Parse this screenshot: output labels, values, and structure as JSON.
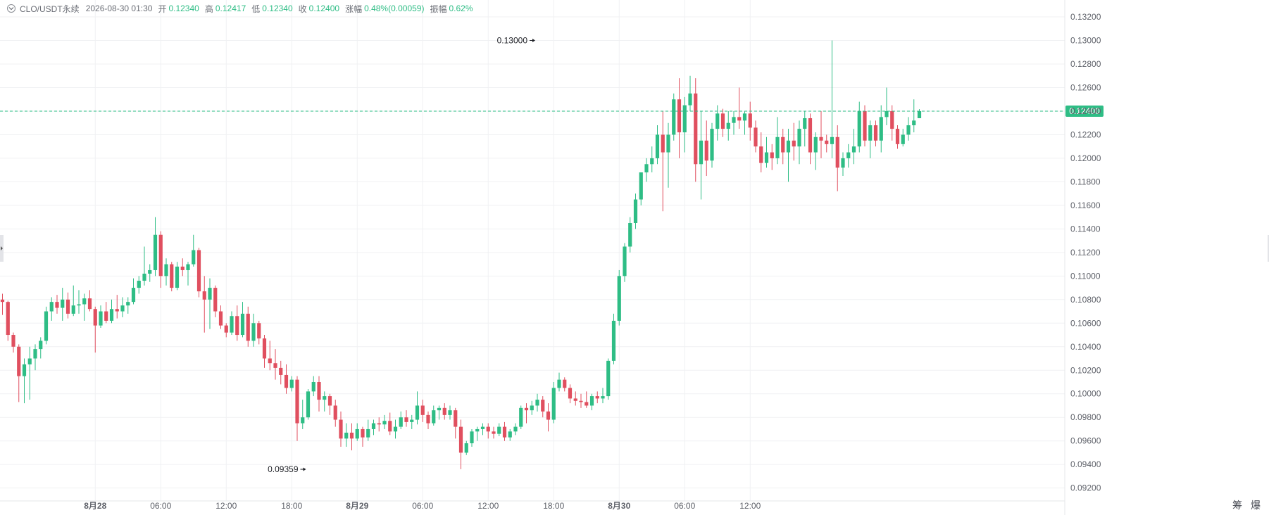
{
  "header": {
    "symbol": "CLO/USDT永续",
    "timestamp": "2026-08-30 01:30",
    "open_label": "开",
    "open_value": "0.12340",
    "high_label": "高",
    "high_value": "0.12417",
    "low_label": "低",
    "low_value": "0.12340",
    "close_label": "收",
    "close_value": "0.12400",
    "change_label": "涨幅",
    "change_value": "0.48%(0.00059)",
    "amplitude_label": "振幅",
    "amplitude_value": "0.62%"
  },
  "tools": {
    "chip_label": "筹",
    "liquidation_label": "爆"
  },
  "colors": {
    "up": "#2ebd85",
    "down": "#e04f5f",
    "grid": "#f0f1f3",
    "axis_text": "#5e6169",
    "text": "#1e2026"
  },
  "chart_data": {
    "type": "candlestick",
    "interval": "30m",
    "ylim": [
      0.0918,
      0.1326
    ],
    "y_ticks": [
      "0.09200",
      "0.09400",
      "0.09600",
      "0.09800",
      "0.10000",
      "0.10200",
      "0.10400",
      "0.10600",
      "0.10800",
      "0.11000",
      "0.11200",
      "0.11400",
      "0.11600",
      "0.11800",
      "0.12000",
      "0.12200",
      "0.12400",
      "0.12600",
      "0.12800",
      "0.13000",
      "0.13200"
    ],
    "x_ticks": [
      {
        "label": "8月28",
        "index": 17,
        "bold": true
      },
      {
        "label": "06:00",
        "index": 29,
        "bold": false
      },
      {
        "label": "12:00",
        "index": 41,
        "bold": false
      },
      {
        "label": "18:00",
        "index": 53,
        "bold": false
      },
      {
        "label": "8月29",
        "index": 65,
        "bold": true
      },
      {
        "label": "06:00",
        "index": 77,
        "bold": false
      },
      {
        "label": "12:00",
        "index": 89,
        "bold": false
      },
      {
        "label": "18:00",
        "index": 101,
        "bold": false
      },
      {
        "label": "8月30",
        "index": 113,
        "bold": true
      },
      {
        "label": "06:00",
        "index": 125,
        "bold": false
      },
      {
        "label": "12:00",
        "index": 137,
        "bold": false
      }
    ],
    "last_price": "0.12400",
    "last_price_value": 0.124,
    "annotations": [
      {
        "label": "0.13000",
        "index": 98,
        "value": 0.13,
        "type": "high"
      },
      {
        "label": "0.09359",
        "index": 56,
        "value": 0.09359,
        "type": "low"
      }
    ],
    "candles": [
      [
        0.108,
        0.1085,
        0.1067,
        0.1078
      ],
      [
        0.1078,
        0.1079,
        0.1045,
        0.105
      ],
      [
        0.105,
        0.1052,
        0.1035,
        0.104
      ],
      [
        0.104,
        0.1042,
        0.0993,
        0.1015
      ],
      [
        0.1015,
        0.103,
        0.0992,
        0.1025
      ],
      [
        0.1025,
        0.104,
        0.0995,
        0.103
      ],
      [
        0.103,
        0.1042,
        0.102,
        0.1038
      ],
      [
        0.1038,
        0.1048,
        0.103,
        0.1045
      ],
      [
        0.1045,
        0.1074,
        0.1042,
        0.107
      ],
      [
        0.107,
        0.1082,
        0.1062,
        0.1078
      ],
      [
        0.1078,
        0.1084,
        0.1068,
        0.1073
      ],
      [
        0.1073,
        0.109,
        0.1062,
        0.108
      ],
      [
        0.108,
        0.1086,
        0.1064,
        0.1068
      ],
      [
        0.1068,
        0.1092,
        0.1066,
        0.1075
      ],
      [
        0.1075,
        0.1088,
        0.1068,
        0.1076
      ],
      [
        0.1076,
        0.1085,
        0.1062,
        0.1081
      ],
      [
        0.1081,
        0.1088,
        0.107,
        0.1072
      ],
      [
        0.1072,
        0.1074,
        0.1035,
        0.1058
      ],
      [
        0.1058,
        0.1075,
        0.1056,
        0.107
      ],
      [
        0.107,
        0.1078,
        0.106,
        0.1062
      ],
      [
        0.1062,
        0.108,
        0.106,
        0.1072
      ],
      [
        0.1072,
        0.1084,
        0.1064,
        0.107
      ],
      [
        0.107,
        0.1082,
        0.1065,
        0.1075
      ],
      [
        0.1075,
        0.1082,
        0.1068,
        0.1078
      ],
      [
        0.1078,
        0.1098,
        0.1076,
        0.109
      ],
      [
        0.109,
        0.11,
        0.1085,
        0.1096
      ],
      [
        0.1096,
        0.1125,
        0.1092,
        0.1102
      ],
      [
        0.1102,
        0.111,
        0.1095,
        0.1105
      ],
      [
        0.1105,
        0.115,
        0.11,
        0.1135
      ],
      [
        0.1135,
        0.1138,
        0.109,
        0.11
      ],
      [
        0.11,
        0.1115,
        0.1092,
        0.111
      ],
      [
        0.111,
        0.1112,
        0.1087,
        0.109
      ],
      [
        0.109,
        0.1112,
        0.1088,
        0.1108
      ],
      [
        0.1108,
        0.1115,
        0.11,
        0.1105
      ],
      [
        0.1105,
        0.1112,
        0.1092,
        0.111
      ],
      [
        0.111,
        0.1135,
        0.1108,
        0.1122
      ],
      [
        0.1122,
        0.1124,
        0.1082,
        0.1087
      ],
      [
        0.1087,
        0.11,
        0.1052,
        0.108
      ],
      [
        0.108,
        0.1098,
        0.1055,
        0.109
      ],
      [
        0.109,
        0.1092,
        0.1065,
        0.107
      ],
      [
        0.107,
        0.1075,
        0.1055,
        0.1058
      ],
      [
        0.1058,
        0.106,
        0.1048,
        0.1052
      ],
      [
        0.1052,
        0.107,
        0.105,
        0.1066
      ],
      [
        0.1066,
        0.1075,
        0.1045,
        0.105
      ],
      [
        0.105,
        0.1078,
        0.1048,
        0.1068
      ],
      [
        0.1068,
        0.1074,
        0.104,
        0.1045
      ],
      [
        0.1045,
        0.1068,
        0.104,
        0.106
      ],
      [
        0.106,
        0.1062,
        0.1042,
        0.1047
      ],
      [
        0.1047,
        0.105,
        0.1022,
        0.103
      ],
      [
        0.103,
        0.1045,
        0.102,
        0.1026
      ],
      [
        0.1026,
        0.1038,
        0.1012,
        0.1022
      ],
      [
        0.1022,
        0.1028,
        0.1008,
        0.1016
      ],
      [
        0.1016,
        0.1025,
        0.1,
        0.1005
      ],
      [
        0.1005,
        0.1015,
        0.1002,
        0.1012
      ],
      [
        0.1012,
        0.1015,
        0.096,
        0.0975
      ],
      [
        0.0975,
        0.0995,
        0.097,
        0.098
      ],
      [
        0.098,
        0.1004,
        0.0978,
        0.1002
      ],
      [
        0.1002,
        0.1015,
        0.0998,
        0.101
      ],
      [
        0.101,
        0.1015,
        0.0985,
        0.0995
      ],
      [
        0.0995,
        0.1002,
        0.0985,
        0.0998
      ],
      [
        0.0998,
        0.1,
        0.0982,
        0.099
      ],
      [
        0.099,
        0.0995,
        0.0972,
        0.0978
      ],
      [
        0.0978,
        0.0985,
        0.0955,
        0.0962
      ],
      [
        0.0962,
        0.0975,
        0.0955,
        0.0967
      ],
      [
        0.0967,
        0.0975,
        0.0952,
        0.0962
      ],
      [
        0.0962,
        0.0975,
        0.096,
        0.097
      ],
      [
        0.097,
        0.0972,
        0.0955,
        0.0963
      ],
      [
        0.0963,
        0.0978,
        0.096,
        0.097
      ]
    ],
    "candles_2": [
      [
        0.097,
        0.0978,
        0.0965,
        0.0975
      ],
      [
        0.0975,
        0.098,
        0.0968,
        0.0974
      ],
      [
        0.0974,
        0.0982,
        0.097,
        0.0977
      ],
      [
        0.0977,
        0.0984,
        0.0965,
        0.0968
      ],
      [
        0.0968,
        0.0978,
        0.0962,
        0.0972
      ],
      [
        0.0972,
        0.0985,
        0.097,
        0.098
      ],
      [
        0.098,
        0.0986,
        0.0972,
        0.0976
      ],
      [
        0.0976,
        0.0982,
        0.097,
        0.0978
      ],
      [
        0.0978,
        0.1002,
        0.0974,
        0.099
      ],
      [
        0.099,
        0.0995,
        0.0976,
        0.0982
      ],
      [
        0.0982,
        0.0985,
        0.097,
        0.0975
      ],
      [
        0.0975,
        0.099,
        0.0973,
        0.0986
      ],
      [
        0.0986,
        0.099,
        0.0978,
        0.0988
      ],
      [
        0.0988,
        0.0992,
        0.0978,
        0.0982
      ],
      [
        0.0982,
        0.099,
        0.0978,
        0.0986
      ],
      [
        0.0986,
        0.0988,
        0.0962,
        0.0972
      ],
      [
        0.0972,
        0.0978,
        0.0936,
        0.095
      ],
      [
        0.095,
        0.096,
        0.0948,
        0.0958
      ],
      [
        0.0958,
        0.097,
        0.0955,
        0.0968
      ],
      [
        0.0968,
        0.0972,
        0.096,
        0.097
      ],
      [
        0.097,
        0.0975,
        0.0965,
        0.0972
      ],
      [
        0.0972,
        0.0975,
        0.0962,
        0.0968
      ],
      [
        0.0968,
        0.0972,
        0.0962,
        0.0966
      ],
      [
        0.0966,
        0.0975,
        0.0964,
        0.0972
      ],
      [
        0.0972,
        0.0976,
        0.096,
        0.0963
      ],
      [
        0.0963,
        0.097,
        0.096,
        0.0968
      ],
      [
        0.0968,
        0.0975,
        0.0965,
        0.0972
      ],
      [
        0.0972,
        0.099,
        0.097,
        0.0988
      ],
      [
        0.0988,
        0.0992,
        0.0975,
        0.0986
      ],
      [
        0.0986,
        0.0994,
        0.0982,
        0.099
      ],
      [
        0.099,
        0.1,
        0.0985,
        0.0995
      ],
      [
        0.0995,
        0.0998,
        0.098,
        0.0985
      ],
      [
        0.0985,
        0.0992,
        0.0968,
        0.0978
      ],
      [
        0.0978,
        0.101,
        0.0975,
        0.1005
      ],
      [
        0.1005,
        0.1018,
        0.1002,
        0.1012
      ],
      [
        0.1012,
        0.1014,
        0.1002,
        0.1005
      ],
      [
        0.1005,
        0.1008,
        0.0992,
        0.0996
      ],
      [
        0.0996,
        0.1002,
        0.099,
        0.0994
      ],
      [
        0.0994,
        0.1,
        0.0988,
        0.0993
      ],
      [
        0.0993,
        0.1002,
        0.0988,
        0.099
      ],
      [
        0.099,
        0.1,
        0.0986,
        0.0998
      ],
      [
        0.0998,
        0.1002,
        0.0992,
        0.0996
      ],
      [
        0.0996,
        0.1005,
        0.0992,
        0.0998
      ],
      [
        0.0998,
        0.103,
        0.0995,
        0.1028
      ],
      [
        0.1028,
        0.1068,
        0.1025,
        0.1062
      ],
      [
        0.1062,
        0.1105,
        0.1058,
        0.11
      ],
      [
        0.11,
        0.1128,
        0.1095,
        0.1125
      ],
      [
        0.1125,
        0.115,
        0.112,
        0.1145
      ]
    ],
    "candles_3": [
      [
        0.1145,
        0.117,
        0.114,
        0.1165
      ],
      [
        0.1165,
        0.1185,
        0.116,
        0.1188
      ],
      [
        0.1188,
        0.12,
        0.118,
        0.1195
      ],
      [
        0.1195,
        0.121,
        0.1188,
        0.12
      ],
      [
        0.12,
        0.1228,
        0.1195,
        0.122
      ],
      [
        0.122,
        0.124,
        0.1155,
        0.1205
      ],
      [
        0.1205,
        0.123,
        0.1175,
        0.122
      ],
      [
        0.122,
        0.1255,
        0.1215,
        0.125
      ],
      [
        0.125,
        0.1268,
        0.12,
        0.1222
      ],
      [
        0.1222,
        0.1252,
        0.1205,
        0.1245
      ],
      [
        0.1245,
        0.127,
        0.124,
        0.1255
      ],
      [
        0.1255,
        0.1268,
        0.118,
        0.1195
      ],
      [
        0.1195,
        0.124,
        0.1165,
        0.1215
      ],
      [
        0.1215,
        0.1232,
        0.1185,
        0.1198
      ],
      [
        0.1198,
        0.123,
        0.1192,
        0.1225
      ],
      [
        0.1225,
        0.1245,
        0.1215,
        0.1238
      ],
      [
        0.1238,
        0.1242,
        0.1218,
        0.1225
      ],
      [
        0.1225,
        0.124,
        0.1215,
        0.123
      ],
      [
        0.123,
        0.124,
        0.122,
        0.1235
      ],
      [
        0.1235,
        0.126,
        0.1225,
        0.1232
      ],
      [
        0.1232,
        0.124,
        0.122,
        0.1238
      ],
      [
        0.1238,
        0.1248,
        0.1215,
        0.1226
      ],
      [
        0.1226,
        0.1232,
        0.1205,
        0.121
      ],
      [
        0.121,
        0.1222,
        0.1188,
        0.1196
      ],
      [
        0.1196,
        0.1218,
        0.1192,
        0.1205
      ],
      [
        0.1205,
        0.1212,
        0.119,
        0.12
      ],
      [
        0.12,
        0.1235,
        0.1195,
        0.1218
      ],
      [
        0.1218,
        0.1225,
        0.1195,
        0.1205
      ],
      [
        0.1205,
        0.1225,
        0.118,
        0.1215
      ],
      [
        0.1215,
        0.123,
        0.1198,
        0.121
      ],
      [
        0.121,
        0.1232,
        0.1195,
        0.1225
      ],
      [
        0.1225,
        0.124,
        0.121,
        0.1234
      ],
      [
        0.1234,
        0.1238,
        0.1195,
        0.1205
      ],
      [
        0.1205,
        0.1222,
        0.119,
        0.1218
      ],
      [
        0.1218,
        0.124,
        0.12,
        0.1215
      ],
      [
        0.1215,
        0.122,
        0.1205,
        0.1212
      ],
      [
        0.1212,
        0.13,
        0.12,
        0.1218
      ],
      [
        0.1218,
        0.1228,
        0.1172,
        0.1192
      ],
      [
        0.1192,
        0.1205,
        0.1185,
        0.12
      ],
      [
        0.12,
        0.1212,
        0.1192,
        0.1205
      ],
      [
        0.1205,
        0.1225,
        0.1195,
        0.121
      ],
      [
        0.121,
        0.1248,
        0.1205,
        0.124
      ],
      [
        0.124,
        0.1245,
        0.121,
        0.1215
      ],
      [
        0.1215,
        0.1232,
        0.12,
        0.1228
      ],
      [
        0.1228,
        0.1232,
        0.121,
        0.1215
      ],
      [
        0.1215,
        0.1245,
        0.1205,
        0.1235
      ],
      [
        0.1235,
        0.126,
        0.1228,
        0.124
      ],
      [
        0.124,
        0.1245,
        0.1215,
        0.1225
      ],
      [
        0.1225,
        0.1228,
        0.1208,
        0.1212
      ],
      [
        0.1212,
        0.1225,
        0.121,
        0.122
      ],
      [
        0.122,
        0.1235,
        0.1215,
        0.1228
      ],
      [
        0.1228,
        0.125,
        0.1222,
        0.1232
      ],
      [
        0.1234,
        0.12417,
        0.1234,
        0.124
      ]
    ]
  }
}
